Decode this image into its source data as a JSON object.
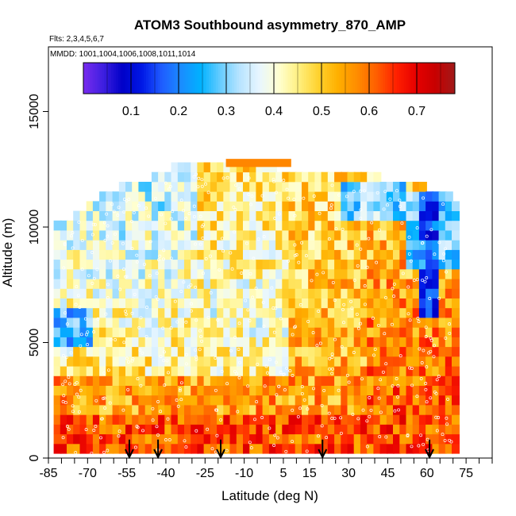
{
  "chart_data": {
    "type": "heatmap",
    "title": "ATOM3 Southbound asymmetry_870_AMP",
    "flights_label": "Flts: 2,3,4,5,6,7",
    "mmdd_label": "MMDD: 1001,1004,1006,1008,1011,1014",
    "xlabel": "Latitude (deg N)",
    "ylabel": "Altitude (m)",
    "xlim": [
      -85,
      85
    ],
    "ylim": [
      0,
      17800
    ],
    "x_ticks": [
      -85,
      -70,
      -55,
      -40,
      -25,
      -10,
      5,
      15,
      30,
      45,
      60,
      75
    ],
    "x_tick_labels": [
      "-85",
      "-70",
      "-55",
      "-40",
      "-25",
      "-10",
      "5",
      "15",
      "30",
      "45",
      "60",
      "75"
    ],
    "x_minor_ticks": [
      -80,
      -75,
      -65,
      -60,
      -50,
      -45,
      -35,
      -30,
      -20,
      -15,
      -5,
      0,
      10,
      20,
      25,
      35,
      40,
      50,
      55,
      65,
      70,
      80,
      85
    ],
    "y_ticks": [
      0,
      5000,
      10000,
      15000
    ],
    "y_tick_labels": [
      "0",
      "5000",
      "10000",
      "15000"
    ],
    "colorbar": {
      "range": [
        0.0,
        0.78
      ],
      "ticks": [
        0.1,
        0.2,
        0.3,
        0.4,
        0.5,
        0.6,
        0.7
      ],
      "tick_labels": [
        "0.1",
        "0.2",
        "0.3",
        "0.4",
        "0.5",
        "0.6",
        "0.7"
      ],
      "colors": [
        "#7a2cf0",
        "#3f1fe0",
        "#0000c8",
        "#0018e6",
        "#1f5cff",
        "#1a8cff",
        "#00b2ff",
        "#66ccff",
        "#b8e4ff",
        "#e8f6ff",
        "#ffffd0",
        "#fff080",
        "#ffd230",
        "#ffb000",
        "#ff8c00",
        "#ff5e00",
        "#ff2000",
        "#e60000",
        "#c80000",
        "#a01a1a"
      ]
    },
    "arrow_latitudes": [
      -54,
      -43,
      -19,
      20,
      61
    ],
    "altitude_profile": {
      "description_none": "",
      "latitude_nodes": [
        -82,
        -75,
        -65,
        -55,
        -45,
        -35,
        -25,
        -15,
        -5,
        5,
        15,
        25,
        35,
        45,
        55,
        62,
        68,
        72
      ],
      "top_altitude": [
        9900,
        10300,
        11100,
        11700,
        12000,
        12500,
        12500,
        12800,
        12600,
        12300,
        12100,
        12200,
        12100,
        11900,
        11700,
        11500,
        11300,
        10800
      ]
    }
  }
}
